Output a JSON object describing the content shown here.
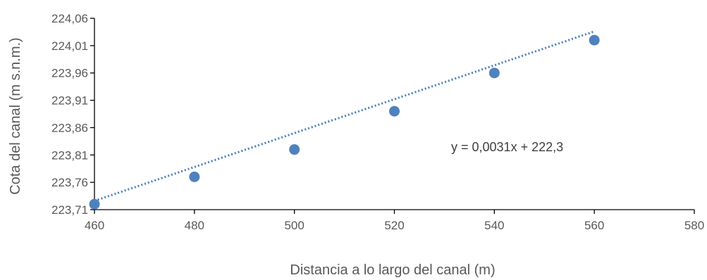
{
  "chart_data": {
    "type": "scatter",
    "title": "",
    "xlabel": "Distancia a lo largo del canal (m)",
    "ylabel": "Cota del canal (m s.n.m.)",
    "xlim": [
      460,
      580
    ],
    "ylim": [
      223.71,
      224.06
    ],
    "x_ticks": [
      460,
      480,
      500,
      520,
      540,
      560,
      580
    ],
    "x_tick_labels": [
      "460",
      "480",
      "500",
      "520",
      "540",
      "560",
      "580"
    ],
    "y_ticks": [
      223.71,
      223.76,
      223.81,
      223.86,
      223.91,
      223.96,
      224.01,
      224.06
    ],
    "y_tick_labels": [
      "223,71",
      "223,76",
      "223,81",
      "223,86",
      "223,91",
      "223,96",
      "224,01",
      "224,06"
    ],
    "grid": false,
    "series": [
      {
        "color": "#4f81bd",
        "x": [
          460,
          480,
          500,
          520,
          540,
          560
        ],
        "y": [
          223.72,
          223.77,
          223.82,
          223.89,
          223.96,
          224.02
        ]
      }
    ],
    "trendline": {
      "type": "linear",
      "slope": 0.0031,
      "intercept": 222.3,
      "x_range": [
        460,
        560
      ],
      "color": "#4a7ebb",
      "label": "y = 0,0031x + 222,3"
    }
  }
}
